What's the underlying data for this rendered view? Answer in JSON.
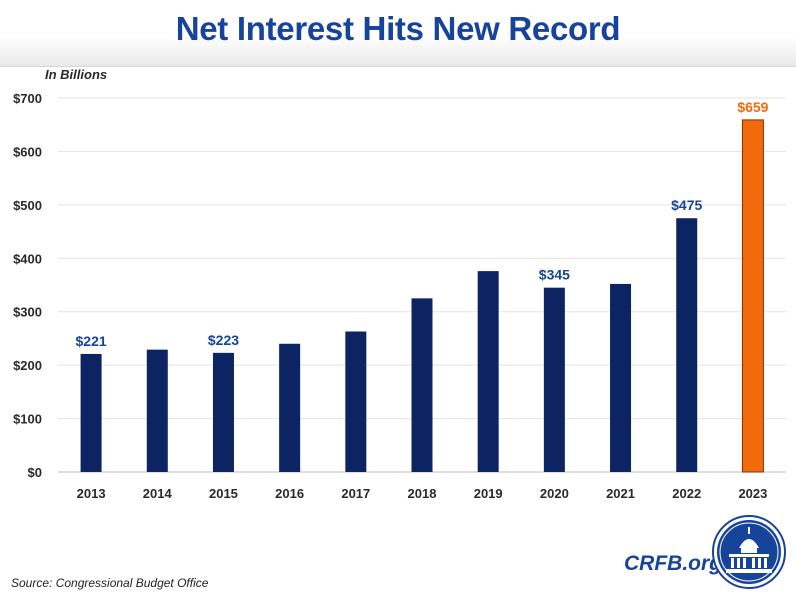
{
  "header": {
    "title": "Net Interest Hits New Record"
  },
  "chart_data": {
    "type": "bar",
    "title": "Net Interest Hits New Record",
    "units_label": "In Billions",
    "categories": [
      "2013",
      "2014",
      "2015",
      "2016",
      "2017",
      "2018",
      "2019",
      "2020",
      "2021",
      "2022",
      "2023"
    ],
    "values": [
      221,
      229,
      223,
      240,
      263,
      325,
      376,
      345,
      352,
      475,
      659
    ],
    "data_labels": [
      {
        "category": "2013",
        "text": "$221"
      },
      {
        "category": "2015",
        "text": "$223"
      },
      {
        "category": "2020",
        "text": "$345"
      },
      {
        "category": "2022",
        "text": "$475"
      },
      {
        "category": "2023",
        "text": "$659"
      }
    ],
    "highlight_category": "2023",
    "ylim": [
      0,
      700
    ],
    "yticks": [
      0,
      100,
      200,
      300,
      400,
      500,
      600,
      700
    ],
    "ytick_labels": [
      "$0",
      "$100",
      "$200",
      "$300",
      "$400",
      "$500",
      "$600",
      "$700"
    ],
    "grid": true,
    "colors": {
      "bar": "#0c2461",
      "highlight": "#f26a0c",
      "label": "#17449b",
      "grid": "#e3e3e3"
    }
  },
  "footer": {
    "source": "Source: Congressional Budget Office",
    "brand": "CRFB.org"
  },
  "icons": {
    "seal": "capitol-seal-icon"
  }
}
